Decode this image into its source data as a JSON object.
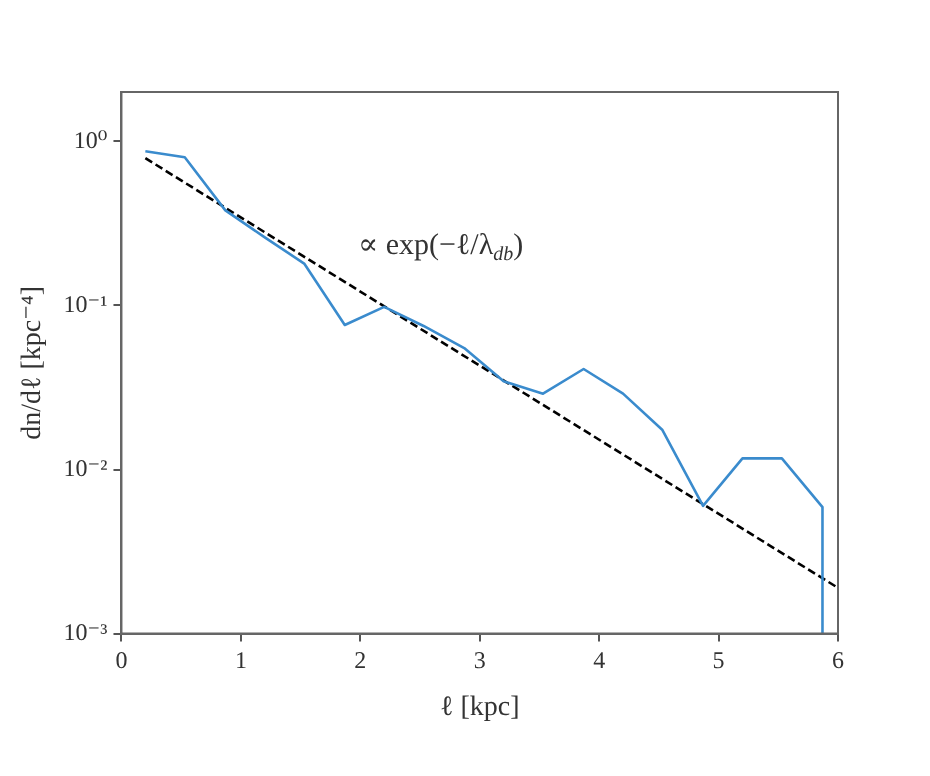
{
  "chart_data": {
    "type": "line",
    "xlabel": "ℓ [kpc]",
    "ylabel": "dn/dℓ [kpc⁻⁴]",
    "log": "y",
    "grid": false,
    "legend": false,
    "marker": "none",
    "xlim": [
      0,
      6
    ],
    "xticks": [
      0,
      1,
      2,
      3,
      4,
      5,
      6
    ],
    "ylim": [
      0.001,
      2
    ],
    "yticks": [
      {
        "value": 0.001,
        "label": "10⁻³"
      },
      {
        "value": 0.01,
        "label": "10⁻²"
      },
      {
        "value": 0.1,
        "label": "10⁻¹"
      },
      {
        "value": 1,
        "label": "10⁰"
      }
    ],
    "annotations": [
      "∝ exp(−ℓ/λ$_{db}$)"
    ],
    "series": [
      {
        "type": "line",
        "color": "#3a8bcd",
        "line_style": "solid",
        "x": [
          0.2,
          0.53,
          0.87,
          1.2,
          1.53,
          1.87,
          2.2,
          2.53,
          2.87,
          3.2,
          3.53,
          3.87,
          4.2,
          4.53,
          4.87,
          5.2,
          5.53,
          5.87,
          5.87
        ],
        "values": [
          0.87,
          0.8,
          0.38,
          0.26,
          0.18,
          0.076,
          0.098,
          0.075,
          0.055,
          0.0345,
          0.029,
          0.041,
          0.029,
          0.0174,
          0.006,
          0.0117,
          0.0117,
          0.0059,
          0.001
        ]
      },
      {
        "type": "line",
        "color": "#000000",
        "line_style": "dashed",
        "x": [
          0.2,
          6
        ],
        "values": [
          0.79,
          0.0019
        ]
      }
    ]
  }
}
